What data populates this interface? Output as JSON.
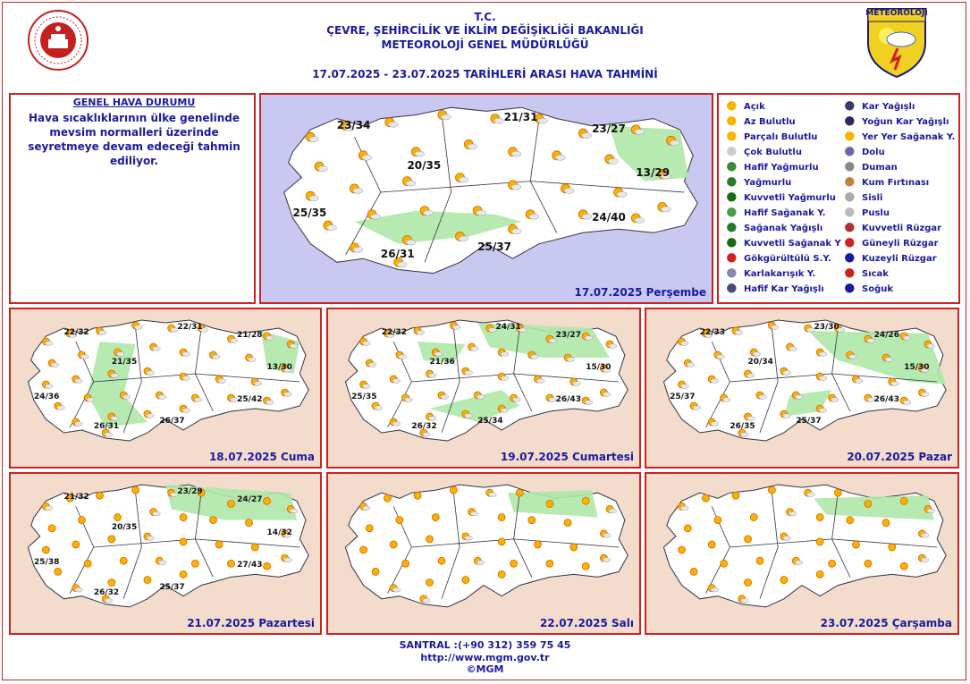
{
  "header": {
    "line1": "T.C.",
    "line2": "ÇEVRE, ŞEHİRCİLİK VE İKLİM DEĞİŞİKLİĞİ BAKANLIĞI",
    "line3": "METEOROLOJİ GENEL MÜDÜRLÜĞÜ",
    "line4": "17.07.2025 - 23.07.2025 TARİHLERİ ARASI HAVA TAHMİNİ",
    "logo_right_text": "METEOROLOJİ"
  },
  "genel": {
    "title": "GENEL HAVA DURUMU",
    "text": "Hava sıcaklıklarının ülke genelinde mevsim normalleri üzerinde seyretmeye devam edeceği tahmin ediliyor."
  },
  "colors": {
    "accent": "#1a1aa0",
    "border": "#cc2222",
    "land": "#ffffff",
    "sea_main": "#c8c8f0",
    "sea_small": "#f4dccc",
    "green": "#aee8a8"
  },
  "maps": [
    {
      "label": "17.07.2025 Perşembe",
      "temps": [
        "23/34",
        "21/31",
        "23/27",
        "20/35",
        "13/29",
        "25/35",
        "24/40",
        "26/31",
        "25/37"
      ]
    },
    {
      "label": "18.07.2025 Cuma",
      "temps": [
        "22/32",
        "22/31",
        "21/28",
        "21/35",
        "13/30",
        "24/36",
        "25/42",
        "26/31",
        "26/37"
      ]
    },
    {
      "label": "19.07.2025 Cumartesi",
      "temps": [
        "22/32",
        "24/31",
        "23/27",
        "21/36",
        "15/30",
        "25/35",
        "26/43",
        "26/32",
        "25/34"
      ]
    },
    {
      "label": "20.07.2025 Pazar",
      "temps": [
        "22/33",
        "23/30",
        "24/26",
        "20/34",
        "15/30",
        "25/37",
        "26/43",
        "26/35",
        "25/37"
      ]
    },
    {
      "label": "21.07.2025 Pazartesi",
      "temps": [
        "21/32",
        "23/29",
        "24/27",
        "20/35",
        "14/32",
        "25/38",
        "27/43",
        "26/32",
        "25/37"
      ]
    },
    {
      "label": "22.07.2025 Salı",
      "temps": []
    },
    {
      "label": "23.07.2025 Çarşamba",
      "temps": []
    }
  ],
  "legend": [
    {
      "label": "Açık",
      "icon": "sun-icon"
    },
    {
      "label": "Az Bulutlu",
      "icon": "few-clouds-icon"
    },
    {
      "label": "Parçalı Bulutlu",
      "icon": "partly-cloudy-icon"
    },
    {
      "label": "Çok Bulutlu",
      "icon": "cloudy-icon"
    },
    {
      "label": "Hafif Yağmurlu",
      "icon": "light-rain-icon"
    },
    {
      "label": "Yağmurlu",
      "icon": "rain-icon"
    },
    {
      "label": "Kuvvetli Yağmurlu",
      "icon": "heavy-rain-icon"
    },
    {
      "label": "Hafif Sağanak Y.",
      "icon": "light-shower-icon"
    },
    {
      "label": "Sağanak Yağışlı",
      "icon": "shower-icon"
    },
    {
      "label": "Kuvvetli Sağanak Y",
      "icon": "heavy-shower-icon"
    },
    {
      "label": "Gökgürültülü S.Y.",
      "icon": "thunder-icon"
    },
    {
      "label": "Karlakarışık Y.",
      "icon": "sleet-icon"
    },
    {
      "label": "Hafif Kar Yağışlı",
      "icon": "light-snow-icon"
    },
    {
      "label": "Kar Yağışlı",
      "icon": "snow-icon"
    },
    {
      "label": "Yoğun Kar Yağışlı",
      "icon": "heavy-snow-icon"
    },
    {
      "label": "Yer Yer Sağanak Y.",
      "icon": "scattered-shower-icon"
    },
    {
      "label": "Dolu",
      "icon": "hail-icon"
    },
    {
      "label": "Duman",
      "icon": "smoke-icon"
    },
    {
      "label": "Kum Fırtınası",
      "icon": "sandstorm-icon"
    },
    {
      "label": "Sisli",
      "icon": "fog-icon"
    },
    {
      "label": "Puslu",
      "icon": "mist-icon"
    },
    {
      "label": "Kuvvetli Rüzgar",
      "icon": "strong-wind-icon"
    },
    {
      "label": "Güneyli Rüzgar",
      "icon": "south-wind-icon"
    },
    {
      "label": "Kuzeyli Rüzgar",
      "icon": "north-wind-icon"
    },
    {
      "label": "Sıcak",
      "icon": "hot-icon"
    },
    {
      "label": "Soğuk",
      "icon": "cold-icon"
    }
  ],
  "footer": {
    "santral": "SANTRAL :(+90 312) 359 75 45",
    "url": "http://www.mgm.gov.tr",
    "copyright": "©MGM"
  }
}
